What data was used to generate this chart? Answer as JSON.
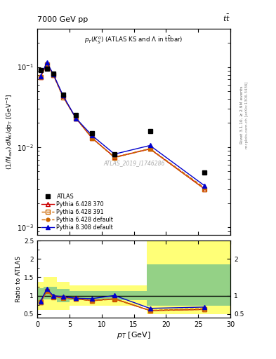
{
  "title_left": "7000 GeV pp",
  "title_right": "tt",
  "watermark": "ATLAS_2019_I1746286",
  "rivet_label": "Rivet 3.1.10, ≥ 2.9M events",
  "mcplots_label": "mcplots.cern.ch [arXiv:1306.3436]",
  "atlas_x": [
    0.5,
    1.5,
    2.5,
    4.0,
    6.0,
    8.5,
    12.0,
    17.5,
    26.0
  ],
  "atlas_y": [
    0.091,
    0.096,
    0.082,
    0.045,
    0.025,
    0.015,
    0.0082,
    0.016,
    0.0048
  ],
  "py6_370_y": [
    0.075,
    0.11,
    0.08,
    0.043,
    0.023,
    0.013,
    0.0075,
    0.0095,
    0.003
  ],
  "py6_391_y": [
    0.075,
    0.108,
    0.079,
    0.042,
    0.023,
    0.013,
    0.0074,
    0.0095,
    0.003
  ],
  "py6_def_y": [
    0.076,
    0.109,
    0.08,
    0.043,
    0.023,
    0.013,
    0.0075,
    0.0096,
    0.0031
  ],
  "py8_def_y": [
    0.077,
    0.114,
    0.081,
    0.044,
    0.023,
    0.014,
    0.0082,
    0.0105,
    0.0033
  ],
  "ratio_py6_370": [
    0.82,
    1.14,
    0.975,
    0.955,
    0.92,
    0.865,
    0.915,
    0.595,
    0.625
  ],
  "ratio_py6_391": [
    0.82,
    1.12,
    0.965,
    0.935,
    0.91,
    0.86,
    0.905,
    0.595,
    0.625
  ],
  "ratio_py6_def": [
    0.835,
    1.135,
    0.975,
    0.955,
    0.92,
    0.865,
    0.915,
    0.6,
    0.645
  ],
  "ratio_py8_def": [
    0.845,
    1.185,
    0.995,
    0.975,
    0.93,
    0.92,
    1.005,
    0.655,
    0.69
  ],
  "band_x_edges": [
    0.0,
    1.0,
    3.0,
    5.0,
    7.0,
    11.0,
    17.0,
    22.0,
    30.0
  ],
  "green_band_lo": [
    0.8,
    0.9,
    0.82,
    0.88,
    0.88,
    0.88,
    0.72,
    0.72
  ],
  "green_band_hi": [
    1.2,
    1.25,
    1.18,
    1.12,
    1.12,
    1.12,
    1.85,
    1.85
  ],
  "yellow_band_lo": [
    0.62,
    0.5,
    0.62,
    0.72,
    0.72,
    0.72,
    0.5,
    0.5
  ],
  "yellow_band_hi": [
    1.38,
    1.5,
    1.38,
    1.28,
    1.28,
    1.28,
    2.5,
    2.5
  ],
  "color_py6_370": "#cc0000",
  "color_py6_391": "#cc6600",
  "color_py6_def": "#cc6600",
  "color_py8_def": "#0000cc",
  "ylim_main": [
    0.0008,
    0.3
  ],
  "ylim_ratio": [
    0.4,
    2.5
  ],
  "xlim": [
    0,
    30
  ]
}
